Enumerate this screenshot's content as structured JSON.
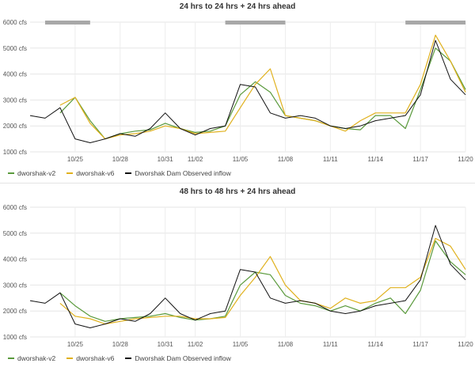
{
  "chart_data": [
    {
      "type": "line",
      "title": "24 hrs to 24 hrs + 24 hrs ahead",
      "xlabel": "",
      "ylabel": "",
      "ylim": [
        1000,
        6000
      ],
      "y_ticks": [
        "1000 cfs",
        "2000 cfs",
        "3000 cfs",
        "4000 cfs",
        "5000 cfs",
        "6000 cfs"
      ],
      "x_range": [
        "10/22",
        "11/20"
      ],
      "x_ticks": [
        "10/25",
        "10/28",
        "10/31",
        "11/02",
        "11/05",
        "11/08",
        "11/11",
        "11/14",
        "11/17",
        "11/20"
      ],
      "grid": true,
      "legend": "bottom-left",
      "annotation_bars": [
        {
          "start": "10/23",
          "end": "10/26"
        },
        {
          "start": "11/04",
          "end": "11/08"
        },
        {
          "start": "11/16",
          "end": "11/20"
        }
      ],
      "series": [
        {
          "name": "dworshak-v2",
          "color": "#5a9a3c",
          "x": [
            "10/24",
            "10/25",
            "10/26",
            "10/27",
            "10/28",
            "10/29",
            "10/30",
            "10/31",
            "11/01",
            "11/02",
            "11/03",
            "11/04",
            "11/05",
            "11/06",
            "11/07",
            "11/08",
            "11/09",
            "11/10",
            "11/11",
            "11/12",
            "11/13",
            "11/14",
            "11/15",
            "11/16",
            "11/17",
            "11/18",
            "11/19",
            "11/20"
          ],
          "values": [
            2500,
            3100,
            2200,
            1500,
            1700,
            1800,
            1850,
            2100,
            1900,
            1750,
            1800,
            2000,
            3200,
            3700,
            3300,
            2400,
            2300,
            2200,
            2000,
            1900,
            1850,
            2400,
            2400,
            1900,
            3400,
            5000,
            4500,
            3400
          ]
        },
        {
          "name": "dworshak-v6",
          "color": "#e0b11d",
          "x": [
            "10/24",
            "10/25",
            "10/26",
            "10/27",
            "10/28",
            "10/29",
            "10/30",
            "10/31",
            "11/01",
            "11/02",
            "11/03",
            "11/04",
            "11/05",
            "11/06",
            "11/07",
            "11/08",
            "11/09",
            "11/10",
            "11/11",
            "11/12",
            "11/13",
            "11/14",
            "11/15",
            "11/16",
            "11/17",
            "11/18",
            "11/19",
            "11/20"
          ],
          "values": [
            2800,
            3100,
            2100,
            1500,
            1650,
            1700,
            1800,
            2000,
            1900,
            1700,
            1750,
            1800,
            2700,
            3600,
            4200,
            2400,
            2300,
            2200,
            2000,
            1800,
            2200,
            2500,
            2500,
            2500,
            3600,
            5500,
            4500,
            3300
          ]
        },
        {
          "name": "Dworshak Dam Observed inflow",
          "color": "#111111",
          "x": [
            "10/22",
            "10/23",
            "10/24",
            "10/25",
            "10/26",
            "10/27",
            "10/28",
            "10/29",
            "10/30",
            "10/31",
            "11/01",
            "11/02",
            "11/03",
            "11/04",
            "11/05",
            "11/06",
            "11/07",
            "11/08",
            "11/09",
            "11/10",
            "11/11",
            "11/12",
            "11/13",
            "11/14",
            "11/15",
            "11/16",
            "11/17",
            "11/18",
            "11/19",
            "11/20"
          ],
          "values": [
            2400,
            2300,
            2700,
            1500,
            1350,
            1500,
            1700,
            1600,
            1900,
            2500,
            1900,
            1650,
            1900,
            2000,
            3600,
            3500,
            2500,
            2300,
            2400,
            2300,
            2000,
            1900,
            2000,
            2200,
            2300,
            2400,
            3200,
            5300,
            3800,
            3200
          ]
        }
      ]
    },
    {
      "type": "line",
      "title": "48 hrs to 48 hrs + 24 hrs ahead",
      "xlabel": "",
      "ylabel": "",
      "ylim": [
        1000,
        6000
      ],
      "y_ticks": [
        "1000 cfs",
        "2000 cfs",
        "3000 cfs",
        "4000 cfs",
        "5000 cfs",
        "6000 cfs"
      ],
      "x_range": [
        "10/22",
        "11/20"
      ],
      "x_ticks": [
        "10/25",
        "10/28",
        "10/31",
        "11/02",
        "11/05",
        "11/08",
        "11/11",
        "11/14",
        "11/17",
        "11/20"
      ],
      "grid": true,
      "legend": "bottom-left",
      "series": [
        {
          "name": "dworshak-v2",
          "color": "#5a9a3c",
          "x": [
            "10/24",
            "10/25",
            "10/26",
            "10/27",
            "10/28",
            "10/29",
            "10/30",
            "10/31",
            "11/01",
            "11/02",
            "11/03",
            "11/04",
            "11/05",
            "11/06",
            "11/07",
            "11/08",
            "11/09",
            "11/10",
            "11/11",
            "11/12",
            "11/13",
            "11/14",
            "11/15",
            "11/16",
            "11/17",
            "11/18",
            "11/19",
            "11/20"
          ],
          "values": [
            2700,
            2200,
            1800,
            1600,
            1700,
            1750,
            1800,
            1900,
            1750,
            1650,
            1700,
            1800,
            3000,
            3500,
            3400,
            2600,
            2300,
            2200,
            2000,
            2200,
            2000,
            2300,
            2500,
            1900,
            2800,
            4700,
            3900,
            3400
          ]
        },
        {
          "name": "dworshak-v6",
          "color": "#e0b11d",
          "x": [
            "10/24",
            "10/25",
            "10/26",
            "10/27",
            "10/28",
            "10/29",
            "10/30",
            "10/31",
            "11/01",
            "11/02",
            "11/03",
            "11/04",
            "11/05",
            "11/06",
            "11/07",
            "11/08",
            "11/09",
            "11/10",
            "11/11",
            "11/12",
            "11/13",
            "11/14",
            "11/15",
            "11/16",
            "11/17",
            "11/18",
            "11/19",
            "11/20"
          ],
          "values": [
            2300,
            1800,
            1700,
            1500,
            1600,
            1700,
            1750,
            1800,
            1800,
            1700,
            1700,
            1750,
            2600,
            3300,
            4100,
            3000,
            2400,
            2300,
            2100,
            2500,
            2300,
            2400,
            2900,
            2900,
            3300,
            4800,
            4500,
            3600
          ]
        },
        {
          "name": "Dworshak Dam Observed inflow",
          "color": "#111111",
          "x": [
            "10/22",
            "10/23",
            "10/24",
            "10/25",
            "10/26",
            "10/27",
            "10/28",
            "10/29",
            "10/30",
            "10/31",
            "11/01",
            "11/02",
            "11/03",
            "11/04",
            "11/05",
            "11/06",
            "11/07",
            "11/08",
            "11/09",
            "11/10",
            "11/11",
            "11/12",
            "11/13",
            "11/14",
            "11/15",
            "11/16",
            "11/17",
            "11/18",
            "11/19",
            "11/20"
          ],
          "values": [
            2400,
            2300,
            2700,
            1500,
            1350,
            1500,
            1700,
            1600,
            1900,
            2500,
            1900,
            1650,
            1900,
            2000,
            3600,
            3500,
            2500,
            2300,
            2400,
            2300,
            2000,
            1900,
            2000,
            2200,
            2300,
            2400,
            3200,
            5300,
            3800,
            3200
          ]
        }
      ]
    }
  ]
}
